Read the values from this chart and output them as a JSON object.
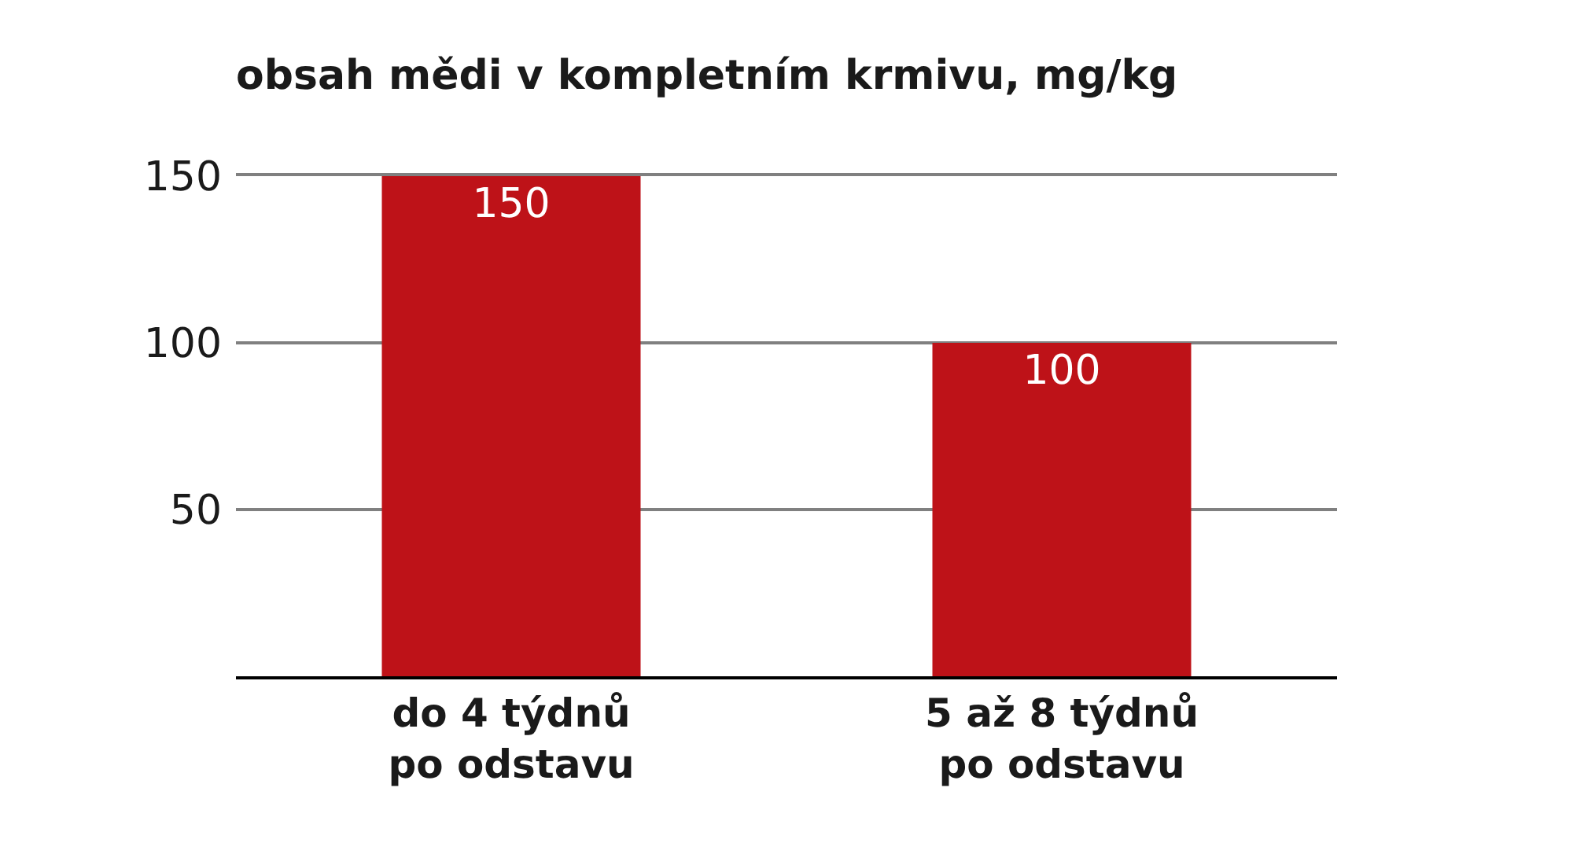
{
  "chart_data": {
    "type": "bar",
    "title": "obsah mědi v kompletním krmivu, mg/kg",
    "categories": [
      "do 4 týdnů\npo odstavu",
      "5 až 8 týdnů\npo odstavu"
    ],
    "values": [
      150,
      100
    ],
    "color": "#be1218",
    "ylim": [
      0,
      150
    ],
    "yticks": [
      50,
      100,
      150
    ],
    "grid": "y",
    "data_labels": true
  }
}
